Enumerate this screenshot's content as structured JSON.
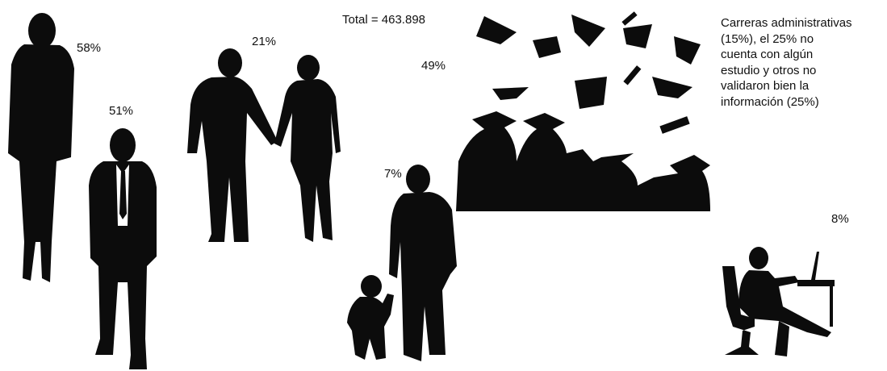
{
  "labels": {
    "woman": "58%",
    "man": "51%",
    "couple": "21%",
    "total": "Total = 463.898",
    "graduates": "49%",
    "parent": "7%",
    "office": "8%"
  },
  "note": {
    "lines": [
      "Carreras administrativas",
      "(15%), el 25% no",
      "cuenta con algún",
      "estudio y otros no",
      "validaron bien la",
      "información (25%)"
    ]
  }
}
